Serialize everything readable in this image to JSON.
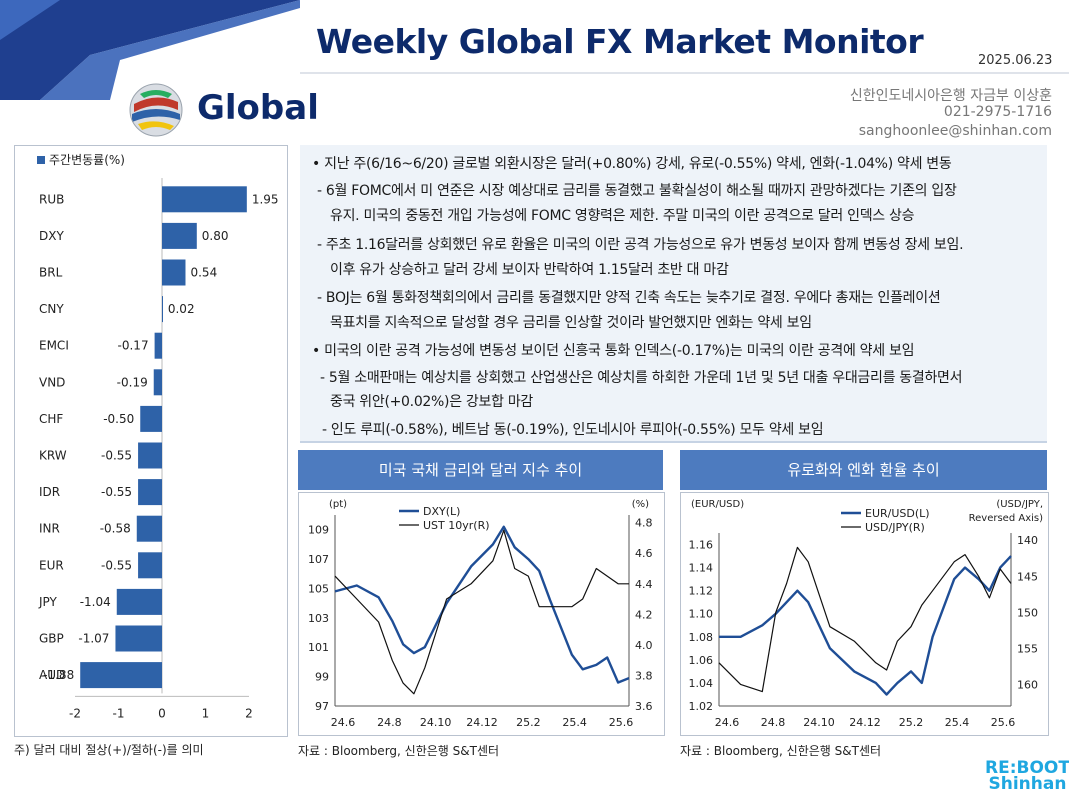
{
  "header": {
    "title": "Weekly Global FX Market Monitor",
    "date": "2025.06.23",
    "region": "Global",
    "contact_org": "신한인도네시아은행 자금부 이상훈",
    "contact_phone": "021-2975-1716",
    "contact_email": "sanghoonlee@shinhan.com"
  },
  "left_panel": {
    "legend": "주간변동률(%)",
    "note": "주) 달러 대비 절상(+)/절하(-)를 의미"
  },
  "commentary": [
    "• 지난 주(6/16~6/20) 글로벌 외환시장은 달러(+0.80%) 강세, 유로(-0.55%) 약세, 엔화(-1.04%) 약세 변동",
    "- 6월 FOMC에서 미 연준은 시장 예상대로 금리를 동결했고 불확실성이 해소될 때까지 관망하겠다는 기존의 입장",
    "유지. 미국의 중동전 개입 가능성에 FOMC 영향력은 제한. 주말 미국의 이란 공격으로 달러 인덱스 상승",
    "- 주초 1.16달러를 상회했던 유로 환율은 미국의 이란 공격 가능성으로 유가 변동성 보이자 함께 변동성 장세 보임.",
    "이후 유가 상승하고 달러 강세 보이자 반락하여 1.15달러 초반 대 마감",
    "- BOJ는 6월 통화정책회의에서 금리를 동결했지만 양적 긴축 속도는 늦추기로 결정. 우에다 총재는 인플레이션",
    "목표치를 지속적으로 달성할 경우 금리를 인상할 것이라 발언했지만 엔화는 약세 보임",
    "• 미국의 이란 공격 가능성에 변동성 보이던 신흥국 통화 인덱스(-0.17%)는 미국의 이란 공격에 약세 보임",
    "- 5월 소매판매는 예상치를 상회했고 산업생산은 예상치를 하회한 가운데 1년 및 5년 대출 우대금리를 동결하면서",
    "중국 위안(+0.02%)은 강보합 마감",
    "- 인도 루피(-0.58%), 베트남 동(-0.19%), 인도네시아 루피아(-0.55%) 모두 약세 보임"
  ],
  "chart1_title": "미국 국채 금리와 달러 지수 추이",
  "chart2_title": "유로화와 엔화 환율 추이",
  "source1": "자료 : Bloomberg, 신한은행 S&T센터",
  "source2": "자료 : Bloomberg, 신한은행 S&T센터",
  "footer_logo_line1": "RE:BOOT",
  "footer_logo_line2": "Shinhan",
  "colors": {
    "navy": "#0d2a6b",
    "bar": "#2e62a8",
    "header_blue": "#4d7bbf",
    "line_blue": "#1f4e96",
    "line_black": "#111111"
  },
  "chart_data": [
    {
      "type": "bar",
      "orientation": "horizontal",
      "legend": [
        "주간변동률(%)"
      ],
      "categories": [
        "RUB",
        "DXY",
        "BRL",
        "CNY",
        "EMCI",
        "VND",
        "CHF",
        "KRW",
        "IDR",
        "INR",
        "EUR",
        "JPY",
        "GBP",
        "AUD"
      ],
      "values": [
        1.95,
        0.8,
        0.54,
        0.02,
        -0.17,
        -0.19,
        -0.5,
        -0.55,
        -0.55,
        -0.58,
        -0.55,
        -1.04,
        -1.07,
        -1.88
      ],
      "data_labels": [
        "1.95",
        "0.80",
        "0.54",
        "0.02",
        "-0.17",
        "-0.19",
        "-0.50",
        "-0.55",
        "-0.55",
        "-0.58",
        "-0.55",
        "-1.04",
        "-1.07",
        "-1.88"
      ],
      "xlim": [
        -2,
        2
      ],
      "xticks": [
        "-2",
        "-1",
        "0",
        "1",
        "2"
      ]
    },
    {
      "type": "line",
      "x_ticks": [
        "24.6",
        "24.8",
        "24.10",
        "24.12",
        "25.2",
        "25.4",
        "25.6"
      ],
      "x_range": [
        2024.42,
        2025.5
      ],
      "y_left_label": "(pt)",
      "y_left_range": [
        97,
        110
      ],
      "y_left_ticks": [
        "97",
        "99",
        "101",
        "103",
        "105",
        "107",
        "109"
      ],
      "y_right_label": "(%)",
      "y_right_range": [
        3.6,
        4.85
      ],
      "y_right_ticks": [
        "3.6",
        "3.8",
        "4.0",
        "4.2",
        "4.4",
        "4.6",
        "4.8"
      ],
      "series": [
        {
          "name": "DXY(L)",
          "axis": "left",
          "x": [
            2024.42,
            2024.5,
            2024.58,
            2024.63,
            2024.67,
            2024.71,
            2024.75,
            2024.83,
            2024.92,
            2025.0,
            2025.04,
            2025.08,
            2025.13,
            2025.17,
            2025.21,
            2025.29,
            2025.33,
            2025.38,
            2025.42,
            2025.46,
            2025.5
          ],
          "y": [
            104.8,
            105.2,
            104.4,
            102.8,
            101.2,
            100.6,
            101.0,
            104.0,
            106.5,
            108.0,
            109.2,
            107.8,
            107.0,
            106.2,
            104.2,
            100.5,
            99.5,
            99.8,
            100.3,
            98.6,
            98.9
          ]
        },
        {
          "name": "UST 10yr(R)",
          "axis": "right",
          "x": [
            2024.42,
            2024.5,
            2024.58,
            2024.63,
            2024.67,
            2024.71,
            2024.75,
            2024.83,
            2024.92,
            2025.0,
            2025.04,
            2025.08,
            2025.13,
            2025.17,
            2025.21,
            2025.29,
            2025.33,
            2025.38,
            2025.42,
            2025.46,
            2025.5
          ],
          "y": [
            4.45,
            4.3,
            4.15,
            3.9,
            3.75,
            3.68,
            3.85,
            4.3,
            4.4,
            4.55,
            4.75,
            4.5,
            4.45,
            4.25,
            4.25,
            4.25,
            4.3,
            4.5,
            4.45,
            4.4,
            4.4
          ]
        }
      ]
    },
    {
      "type": "line",
      "x_ticks": [
        "24.6",
        "24.8",
        "24.10",
        "24.12",
        "25.2",
        "25.4",
        "25.6"
      ],
      "x_range": [
        2024.42,
        2025.5
      ],
      "y_left_label": "(EUR/USD)",
      "y_left_range": [
        1.02,
        1.17
      ],
      "y_left_ticks": [
        "1.02",
        "1.04",
        "1.06",
        "1.08",
        "1.10",
        "1.12",
        "1.14",
        "1.16"
      ],
      "y_right_label": "(USD/JPY, Reversed Axis)",
      "y_right_reversed": true,
      "y_right_range": [
        163,
        139
      ],
      "y_right_ticks": [
        "140",
        "145",
        "150",
        "155",
        "160"
      ],
      "series": [
        {
          "name": "EUR/USD(L)",
          "axis": "left",
          "x": [
            2024.42,
            2024.5,
            2024.58,
            2024.63,
            2024.67,
            2024.71,
            2024.75,
            2024.83,
            2024.92,
            2025.0,
            2025.04,
            2025.08,
            2025.13,
            2025.17,
            2025.21,
            2025.29,
            2025.33,
            2025.38,
            2025.42,
            2025.46,
            2025.5
          ],
          "y": [
            1.08,
            1.08,
            1.09,
            1.1,
            1.11,
            1.12,
            1.11,
            1.07,
            1.05,
            1.04,
            1.03,
            1.04,
            1.05,
            1.04,
            1.08,
            1.13,
            1.14,
            1.13,
            1.12,
            1.14,
            1.15
          ]
        },
        {
          "name": "USD/JPY(R)",
          "axis": "right",
          "x": [
            2024.42,
            2024.5,
            2024.58,
            2024.63,
            2024.67,
            2024.71,
            2024.75,
            2024.83,
            2024.92,
            2025.0,
            2025.04,
            2025.08,
            2025.13,
            2025.17,
            2025.21,
            2025.29,
            2025.33,
            2025.38,
            2025.42,
            2025.46,
            2025.5
          ],
          "y": [
            157,
            160,
            161,
            150,
            146,
            141,
            143,
            152,
            154,
            157,
            158,
            154,
            152,
            149,
            147,
            143,
            142,
            145,
            148,
            144,
            146
          ]
        }
      ]
    }
  ]
}
